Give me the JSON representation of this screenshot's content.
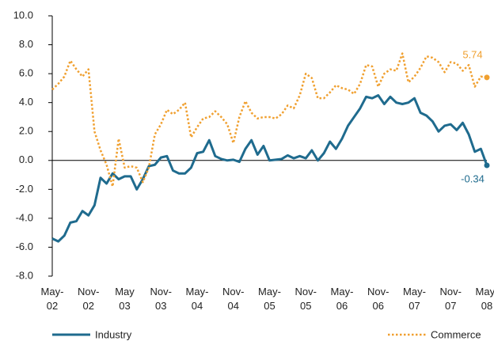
{
  "chart_data": {
    "type": "line",
    "categories": [
      "May-\n02",
      null,
      null,
      null,
      null,
      null,
      "Nov-\n02",
      null,
      null,
      null,
      null,
      null,
      "May\n03",
      null,
      null,
      null,
      null,
      null,
      "Nov-\n03",
      null,
      null,
      null,
      null,
      null,
      "May-\n04",
      null,
      null,
      null,
      null,
      null,
      "Nov-\n04",
      null,
      null,
      null,
      null,
      null,
      "May-\n05",
      null,
      null,
      null,
      null,
      null,
      "Nov-\n05",
      null,
      null,
      null,
      null,
      null,
      "May-\n06",
      null,
      null,
      null,
      null,
      null,
      "Nov-\n06",
      null,
      null,
      null,
      null,
      null,
      "May-\n07",
      null,
      null,
      null,
      null,
      null,
      "Nov-\n07",
      null,
      null,
      null,
      null,
      null,
      "May-\n08"
    ],
    "series": [
      {
        "name": "Industry",
        "color": "#1f6b8e",
        "style": "solid",
        "values": [
          -5.4,
          -5.6,
          -5.2,
          -4.3,
          -4.2,
          -3.5,
          -3.8,
          -3.1,
          -1.2,
          -1.6,
          -0.9,
          -1.3,
          -1.1,
          -1.1,
          -2.0,
          -1.3,
          -0.4,
          -0.3,
          0.2,
          0.3,
          -0.7,
          -0.9,
          -0.9,
          -0.5,
          0.5,
          0.6,
          1.4,
          0.3,
          0.1,
          0.0,
          0.05,
          -0.1,
          0.8,
          1.4,
          0.4,
          1.0,
          0.0,
          0.05,
          0.1,
          0.35,
          0.15,
          0.3,
          0.15,
          0.7,
          0.0,
          0.5,
          1.3,
          0.8,
          1.5,
          2.4,
          3.0,
          3.6,
          4.4,
          4.3,
          4.5,
          3.9,
          4.4,
          4.0,
          3.9,
          4.0,
          4.3,
          3.3,
          3.1,
          2.7,
          2.0,
          2.4,
          2.5,
          2.1,
          2.6,
          1.8,
          0.6,
          0.8,
          -0.34
        ],
        "value_labels": [
          null,
          null,
          null,
          null,
          null,
          null,
          null,
          null,
          null,
          null,
          null,
          null,
          null,
          null,
          null,
          null,
          null,
          null,
          null,
          null,
          null,
          null,
          null,
          null,
          null,
          null,
          null,
          null,
          null,
          null,
          null,
          null,
          null,
          null,
          null,
          null,
          null,
          null,
          null,
          null,
          null,
          null,
          null,
          null,
          null,
          null,
          null,
          null,
          null,
          null,
          null,
          null,
          null,
          null,
          null,
          null,
          null,
          null,
          null,
          null,
          null,
          null,
          null,
          null,
          null,
          null,
          null,
          null,
          null,
          null,
          null,
          null,
          "-0.34"
        ]
      },
      {
        "name": "Commerce",
        "color": "#f0a030",
        "style": "dotted",
        "values": [
          4.9,
          5.3,
          5.8,
          6.9,
          6.3,
          5.8,
          6.3,
          2.0,
          0.7,
          -0.3,
          -1.8,
          1.5,
          -0.5,
          -0.4,
          -0.5,
          -1.5,
          -0.5,
          1.8,
          2.5,
          3.5,
          3.2,
          3.5,
          4.0,
          1.6,
          2.3,
          2.9,
          3.0,
          3.4,
          3.0,
          2.5,
          1.2,
          3.0,
          4.1,
          3.3,
          2.9,
          3.0,
          3.0,
          2.9,
          3.2,
          3.8,
          3.6,
          4.5,
          6.0,
          5.7,
          4.3,
          4.3,
          4.7,
          5.2,
          5.0,
          4.9,
          4.6,
          5.3,
          6.6,
          6.5,
          5.1,
          6.0,
          6.3,
          6.2,
          7.4,
          5.4,
          5.8,
          6.4,
          7.2,
          7.1,
          6.8,
          6.1,
          6.8,
          6.7,
          6.2,
          6.6,
          5.1,
          5.8,
          5.74
        ],
        "value_labels": [
          null,
          null,
          null,
          null,
          null,
          null,
          null,
          null,
          null,
          null,
          null,
          null,
          null,
          null,
          null,
          null,
          null,
          null,
          null,
          null,
          null,
          null,
          null,
          null,
          null,
          null,
          null,
          null,
          null,
          null,
          null,
          null,
          null,
          null,
          null,
          null,
          null,
          null,
          null,
          null,
          null,
          null,
          null,
          null,
          null,
          null,
          null,
          null,
          null,
          null,
          null,
          null,
          null,
          null,
          null,
          null,
          null,
          null,
          null,
          null,
          null,
          null,
          null,
          null,
          null,
          null,
          null,
          null,
          null,
          null,
          null,
          null,
          "5.74"
        ]
      }
    ],
    "ylim": [
      -8,
      10
    ],
    "yticks": [
      {
        "value": -8,
        "label": "-8.0"
      },
      {
        "value": -6,
        "label": "-6.0"
      },
      {
        "value": -4,
        "label": "-4.0"
      },
      {
        "value": -2,
        "label": "-2.0"
      },
      {
        "value": 0,
        "label": "0.0"
      },
      {
        "value": 2,
        "label": "2.0"
      },
      {
        "value": 4,
        "label": "4.0"
      },
      {
        "value": 6,
        "label": "6.0"
      },
      {
        "value": 8,
        "label": "8.0"
      },
      {
        "value": 10,
        "label": "10.0"
      }
    ],
    "grid": false,
    "legend": "bottom"
  }
}
